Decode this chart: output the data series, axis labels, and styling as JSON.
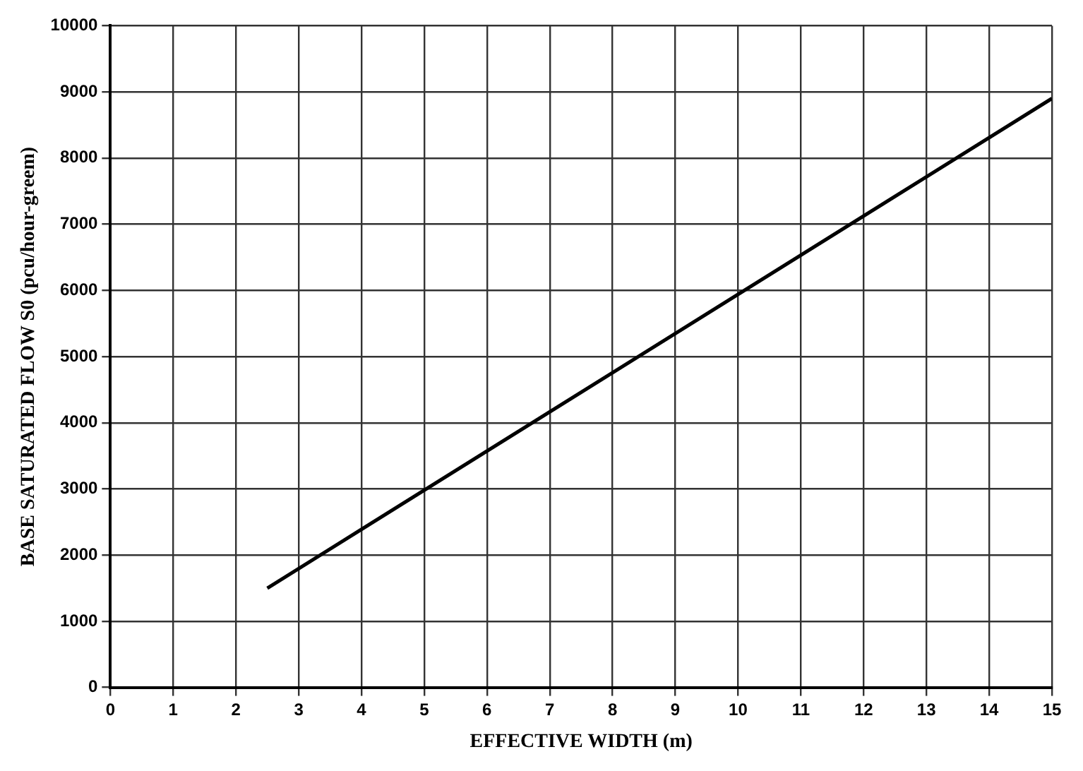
{
  "chart_data": {
    "type": "line",
    "xlabel": "EFFECTIVE WIDTH (m)",
    "ylabel": "BASE SATURATED FLOW S0 (pcu/hour-greem)",
    "x": [
      2.5,
      15
    ],
    "series": [
      {
        "color": "#000000",
        "values": [
          1500,
          8900
        ]
      }
    ],
    "xlim": [
      0,
      15
    ],
    "xticks": [
      0,
      1,
      2,
      3,
      4,
      5,
      6,
      7,
      8,
      9,
      10,
      11,
      12,
      13,
      14,
      15
    ],
    "ylim": [
      0,
      10000
    ],
    "yticks": [
      0,
      1000,
      2000,
      3000,
      4000,
      5000,
      6000,
      7000,
      8000,
      9000,
      10000
    ],
    "grid": true,
    "legend": false,
    "marker": "none",
    "line_style": "solid"
  }
}
